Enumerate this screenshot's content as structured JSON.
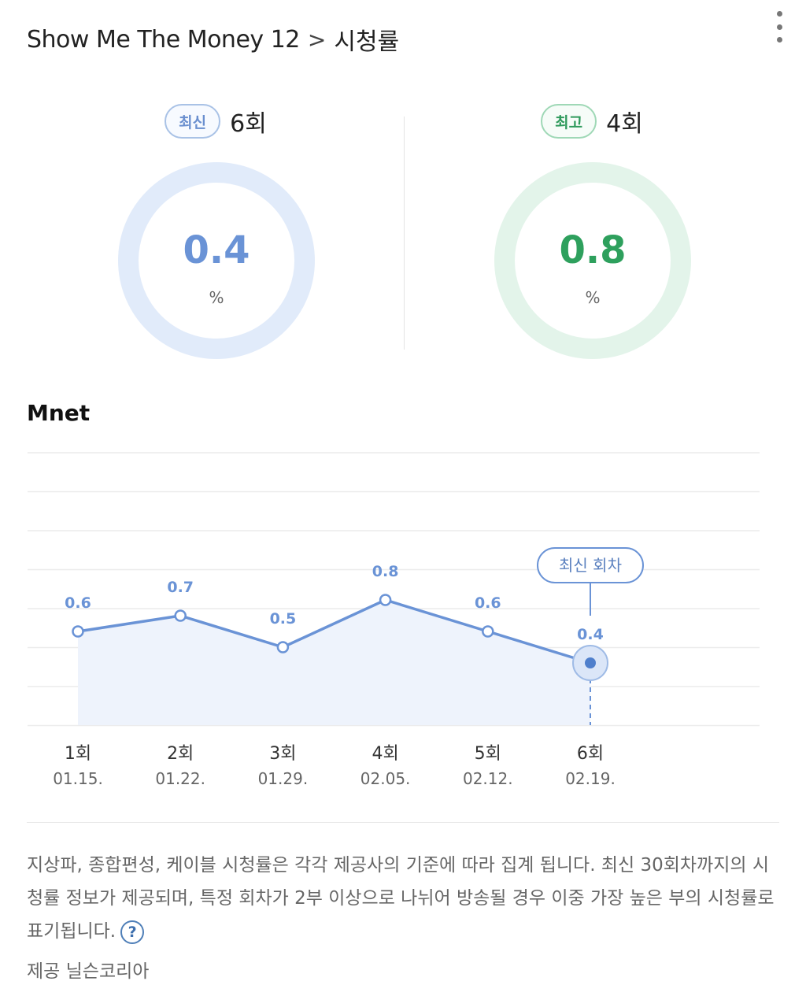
{
  "header": {
    "program": "Show Me The Money 12",
    "separator": ">",
    "page": "시청률",
    "more_icon": "more-vertical-icon"
  },
  "latest": {
    "badge": "최신",
    "episode": "6회",
    "value": "0.4",
    "unit": "%",
    "color": "#6a93d6"
  },
  "highest": {
    "badge": "최고",
    "episode": "4회",
    "value": "0.8",
    "unit": "%",
    "color": "#2ea05d"
  },
  "channel": "Mnet",
  "chart_data": {
    "type": "area",
    "categories": [
      "1회",
      "2회",
      "3회",
      "4회",
      "5회",
      "6회"
    ],
    "dates": [
      "01.15.",
      "01.22.",
      "01.29.",
      "02.05.",
      "02.12.",
      "02.19."
    ],
    "values": [
      0.6,
      0.7,
      0.5,
      0.8,
      0.6,
      0.4
    ],
    "data_labels": [
      "0.6",
      "0.7",
      "0.5",
      "0.8",
      "0.6",
      "0.4"
    ],
    "highlight_index": 5,
    "highlight_label": "최신 회차",
    "grid": true,
    "line_color": "#6a93d6",
    "fill_color": "#eef3fc"
  },
  "notice": {
    "text": "지상파, 종합편성, 케이블 시청률은 각각 제공사의 기준에 따라 집계 됩니다. 최신 30회차까지의 시청률 정보가 제공되며, 특정 회차가 2부 이상으로 나뉘어 방송될 경우 이중 가장 높은 부의 시청률로 표기됩니다.",
    "help_icon": "question-circle-icon",
    "help_glyph": "?"
  },
  "provider": "제공 닐슨코리아"
}
